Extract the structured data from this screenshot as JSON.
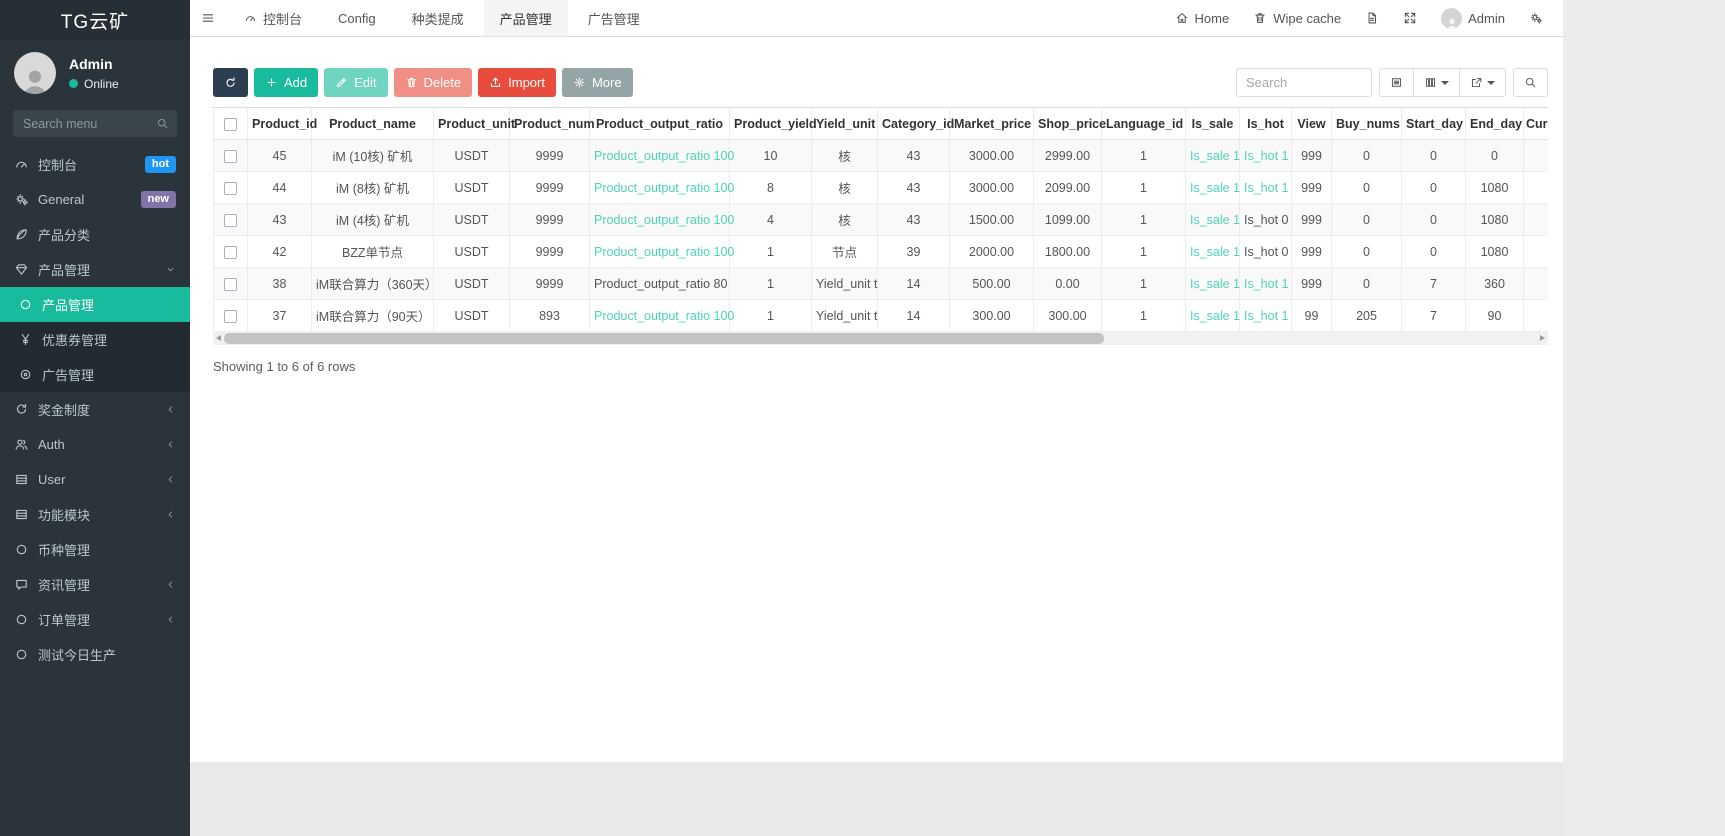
{
  "colors": {
    "accent": "#18bc9c",
    "link": "#4fd3b8",
    "primary": "#2c3e50",
    "danger": "#e74c3c",
    "defaultbtn": "#95a5a6",
    "badge_hot": "#1e97f3",
    "badge_new": "#8273a9"
  },
  "sidebar": {
    "brand": "TG云矿",
    "user": {
      "name": "Admin",
      "status": "Online"
    },
    "search_placeholder": "Search menu",
    "menu": [
      {
        "label": "控制台",
        "icon": "tachometer-icon",
        "badge": {
          "text": "hot",
          "color_key": "badge_hot"
        }
      },
      {
        "label": "General",
        "icon": "gears-icon",
        "badge": {
          "text": "new",
          "color_key": "badge_new"
        }
      },
      {
        "label": "产品分类",
        "icon": "leaf-icon"
      },
      {
        "label": "产品管理",
        "icon": "gem-icon",
        "arrow": "down"
      },
      {
        "label": "产品管理",
        "icon": "circle-o-icon",
        "type": "sub",
        "active": true
      },
      {
        "label": "优惠券管理",
        "icon": "yen-icon",
        "type": "sub"
      },
      {
        "label": "广告管理",
        "icon": "dot-circle-icon",
        "type": "sub"
      },
      {
        "label": "奖金制度",
        "icon": "recycle-icon",
        "arrow": "left"
      },
      {
        "label": "Auth",
        "icon": "users-icon",
        "arrow": "left"
      },
      {
        "label": "User",
        "icon": "table-icon",
        "arrow": "left"
      },
      {
        "label": "功能模块",
        "icon": "table-icon",
        "arrow": "left"
      },
      {
        "label": "币种管理",
        "icon": "circle-o-icon"
      },
      {
        "label": "资讯管理",
        "icon": "comment-icon",
        "arrow": "left"
      },
      {
        "label": "订单管理",
        "icon": "circle-o-icon",
        "arrow": "left"
      },
      {
        "label": "测试今日生产",
        "icon": "circle-o-icon"
      }
    ]
  },
  "topbar": {
    "tabs": [
      {
        "label": "控制台",
        "icon": "tachometer-icon"
      },
      {
        "label": "Config"
      },
      {
        "label": "种类提成"
      },
      {
        "label": "产品管理",
        "active": true
      },
      {
        "label": "广告管理"
      }
    ],
    "right": [
      {
        "label": "Home",
        "icon": "home-icon",
        "name": "home-link"
      },
      {
        "label": "Wipe cache",
        "icon": "trash-icon",
        "name": "wipe-cache-link"
      },
      {
        "icon": "file-icon",
        "name": "log-file-button"
      },
      {
        "icon": "expand-icon",
        "name": "fullscreen-button"
      },
      {
        "label": "Admin",
        "avatar": true,
        "name": "admin-user-menu"
      },
      {
        "icon": "gears-icon",
        "name": "settings-button"
      }
    ]
  },
  "toolbar": {
    "buttons": [
      {
        "icon": "refresh-icon",
        "style": "primary",
        "name": "refresh-button"
      },
      {
        "label": "Add",
        "icon": "plus-icon",
        "style": "success",
        "name": "add-button"
      },
      {
        "label": "Edit",
        "icon": "pencil-icon",
        "style": "success",
        "disabled": true,
        "name": "edit-button"
      },
      {
        "label": "Delete",
        "icon": "trash-icon",
        "style": "danger",
        "disabled": true,
        "name": "delete-button"
      },
      {
        "label": "Import",
        "icon": "upload-icon",
        "style": "danger",
        "name": "import-button"
      },
      {
        "label": "More",
        "icon": "gear-icon",
        "style": "default",
        "name": "more-button"
      }
    ],
    "search_placeholder": "Search",
    "view_buttons": [
      {
        "icon": "detail-icon",
        "name": "toggle-detail-view-button"
      },
      {
        "icon": "columns-icon",
        "caret": true,
        "name": "columns-dropdown-button"
      },
      {
        "icon": "export-icon",
        "caret": true,
        "name": "export-dropdown-button"
      }
    ]
  },
  "table": {
    "columns": [
      "Product_id",
      "Product_name",
      "Product_unit",
      "Product_num",
      "Product_output_ratio",
      "Product_yield",
      "Yield_unit",
      "Category_id",
      "Market_price",
      "Shop_price",
      "Language_id",
      "Is_sale",
      "Is_hot",
      "View",
      "Buy_nums",
      "Start_day",
      "End_day",
      "Curr"
    ],
    "rows": [
      {
        "cells": [
          {
            "v": "45"
          },
          {
            "v": "iM (10核) 矿机"
          },
          {
            "v": "USDT"
          },
          {
            "v": "9999"
          },
          {
            "v": "Product_output_ratio 100",
            "link": true
          },
          {
            "v": "10"
          },
          {
            "v": "核"
          },
          {
            "v": "43"
          },
          {
            "v": "3000.00"
          },
          {
            "v": "2999.00"
          },
          {
            "v": "1"
          },
          {
            "v": "Is_sale 1",
            "link": true
          },
          {
            "v": "Is_hot 1",
            "link": true
          },
          {
            "v": "999"
          },
          {
            "v": "0"
          },
          {
            "v": "0"
          },
          {
            "v": "0"
          },
          {
            "v": ""
          }
        ]
      },
      {
        "cells": [
          {
            "v": "44"
          },
          {
            "v": "iM (8核) 矿机"
          },
          {
            "v": "USDT"
          },
          {
            "v": "9999"
          },
          {
            "v": "Product_output_ratio 100",
            "link": true
          },
          {
            "v": "8"
          },
          {
            "v": "核"
          },
          {
            "v": "43"
          },
          {
            "v": "3000.00"
          },
          {
            "v": "2099.00"
          },
          {
            "v": "1"
          },
          {
            "v": "Is_sale 1",
            "link": true
          },
          {
            "v": "Is_hot 1",
            "link": true
          },
          {
            "v": "999"
          },
          {
            "v": "0"
          },
          {
            "v": "0"
          },
          {
            "v": "1080"
          },
          {
            "v": ""
          }
        ]
      },
      {
        "cells": [
          {
            "v": "43"
          },
          {
            "v": "iM (4核) 矿机"
          },
          {
            "v": "USDT"
          },
          {
            "v": "9999"
          },
          {
            "v": "Product_output_ratio 100",
            "link": true
          },
          {
            "v": "4"
          },
          {
            "v": "核"
          },
          {
            "v": "43"
          },
          {
            "v": "1500.00"
          },
          {
            "v": "1099.00"
          },
          {
            "v": "1"
          },
          {
            "v": "Is_sale 1",
            "link": true
          },
          {
            "v": "Is_hot 0"
          },
          {
            "v": "999"
          },
          {
            "v": "0"
          },
          {
            "v": "0"
          },
          {
            "v": "1080"
          },
          {
            "v": ""
          }
        ]
      },
      {
        "cells": [
          {
            "v": "42"
          },
          {
            "v": "BZZ单节点"
          },
          {
            "v": "USDT"
          },
          {
            "v": "9999"
          },
          {
            "v": "Product_output_ratio 100",
            "link": true
          },
          {
            "v": "1"
          },
          {
            "v": "节点"
          },
          {
            "v": "39"
          },
          {
            "v": "2000.00"
          },
          {
            "v": "1800.00"
          },
          {
            "v": "1"
          },
          {
            "v": "Is_sale 1",
            "link": true
          },
          {
            "v": "Is_hot 0"
          },
          {
            "v": "999"
          },
          {
            "v": "0"
          },
          {
            "v": "0"
          },
          {
            "v": "1080"
          },
          {
            "v": ""
          }
        ]
      },
      {
        "cells": [
          {
            "v": "38"
          },
          {
            "v": "iM联合算力（360天）"
          },
          {
            "v": "USDT"
          },
          {
            "v": "9999"
          },
          {
            "v": "Product_output_ratio 80"
          },
          {
            "v": "1"
          },
          {
            "v": "Yield_unit t"
          },
          {
            "v": "14"
          },
          {
            "v": "500.00"
          },
          {
            "v": "0.00"
          },
          {
            "v": "1"
          },
          {
            "v": "Is_sale 1",
            "link": true
          },
          {
            "v": "Is_hot 1",
            "link": true
          },
          {
            "v": "999"
          },
          {
            "v": "0"
          },
          {
            "v": "7"
          },
          {
            "v": "360"
          },
          {
            "v": ""
          }
        ]
      },
      {
        "cells": [
          {
            "v": "37"
          },
          {
            "v": "iM联合算力（90天）"
          },
          {
            "v": "USDT"
          },
          {
            "v": "893"
          },
          {
            "v": "Product_output_ratio 100",
            "link": true
          },
          {
            "v": "1"
          },
          {
            "v": "Yield_unit t"
          },
          {
            "v": "14"
          },
          {
            "v": "300.00"
          },
          {
            "v": "300.00"
          },
          {
            "v": "1"
          },
          {
            "v": "Is_sale 1",
            "link": true
          },
          {
            "v": "Is_hot 1",
            "link": true
          },
          {
            "v": "99"
          },
          {
            "v": "205"
          },
          {
            "v": "7"
          },
          {
            "v": "90"
          },
          {
            "v": ""
          }
        ]
      }
    ],
    "footer": "Showing 1 to 6 of 6 rows"
  }
}
